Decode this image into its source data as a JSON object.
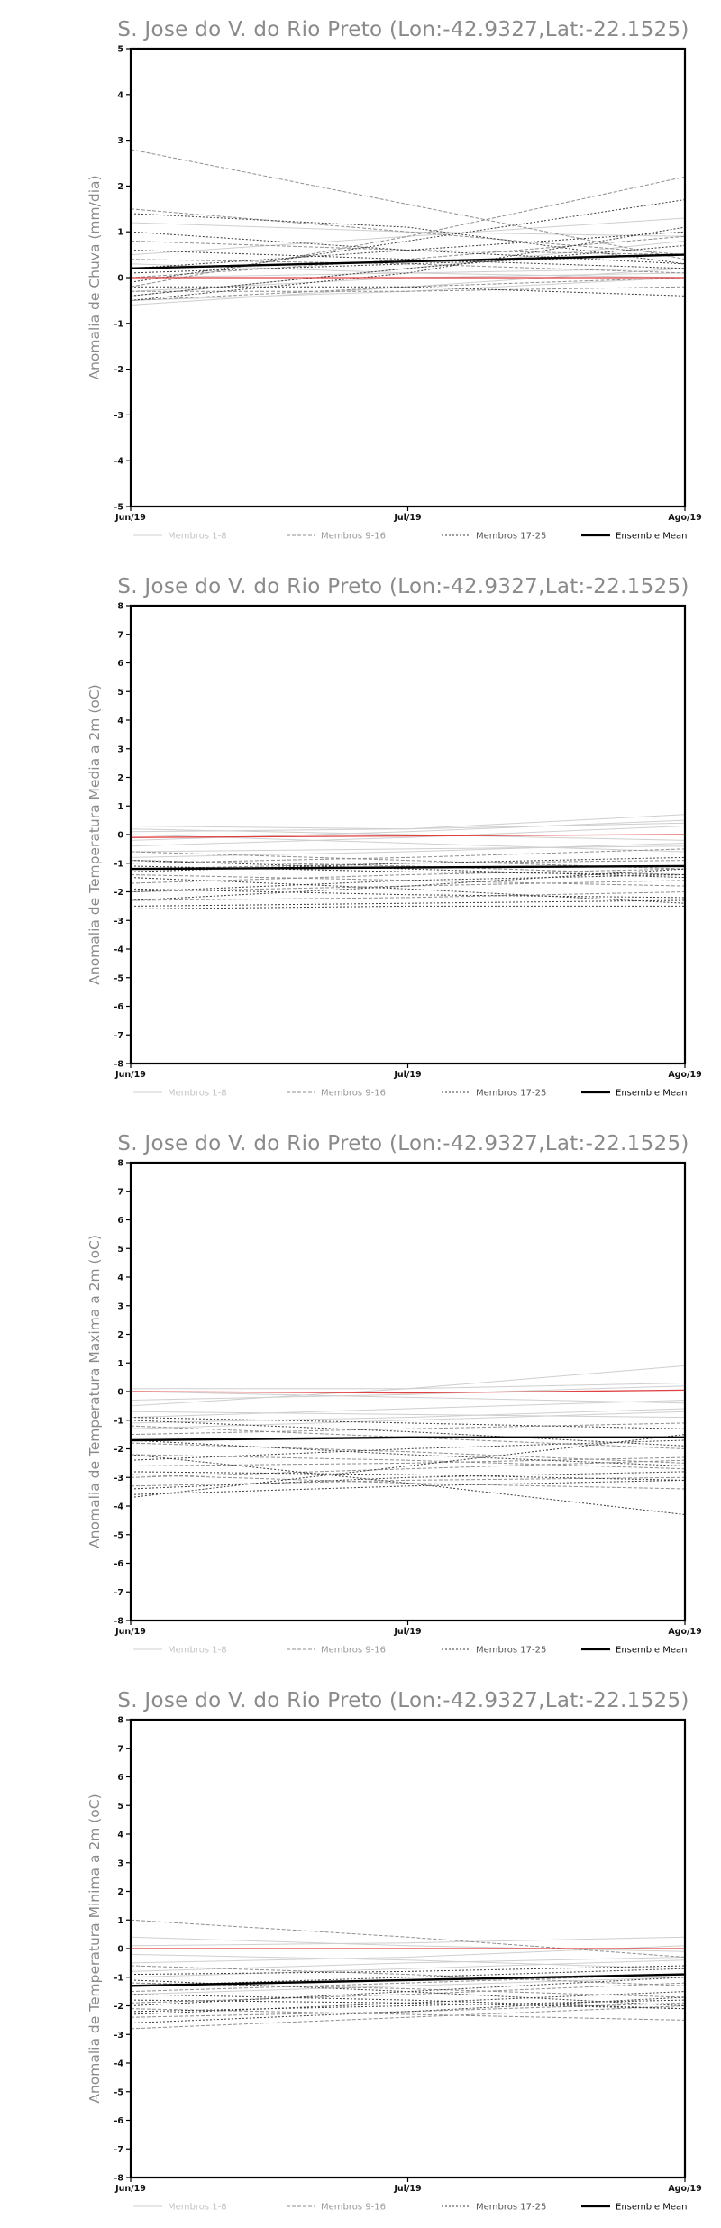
{
  "chart_data": [
    {
      "type": "line",
      "title": "S. Jose do V. do Rio Preto (Lon:-42.9327,Lat:-22.1525)",
      "ylabel": "Anomalia de Chuva (mm/dia)",
      "xlabel": "",
      "categories": [
        "Jun/19",
        "Jul/19",
        "Ago/19"
      ],
      "ylim": [
        -5,
        5
      ],
      "yticks": [
        -5,
        -4,
        -3,
        -2,
        -1,
        0,
        1,
        2,
        3,
        4,
        5
      ],
      "legend": [
        "Membros 1-8",
        "Membros 9-16",
        "Membros 17-25",
        "Ensemble Mean"
      ],
      "legend_position": "bottom",
      "groups": [
        {
          "name": "Membros 1-8",
          "color": "#cfcfcf",
          "dash": "",
          "lines": [
            [
              -0.6,
              -0.2,
              0.2
            ],
            [
              -0.4,
              0.2,
              0.8
            ],
            [
              0.3,
              0.1,
              0.0
            ],
            [
              1.2,
              1.0,
              0.9
            ],
            [
              -0.3,
              0.0,
              0.1
            ],
            [
              0.5,
              0.9,
              1.3
            ],
            [
              -0.5,
              -0.3,
              0.0
            ],
            [
              0.0,
              0.1,
              0.2
            ]
          ]
        },
        {
          "name": "Membros 9-16",
          "color": "#8f8f8f",
          "dash": "4,2",
          "lines": [
            [
              2.8,
              1.6,
              0.4
            ],
            [
              1.5,
              1.0,
              0.5
            ],
            [
              -0.2,
              0.9,
              2.2
            ],
            [
              0.8,
              0.6,
              0.5
            ],
            [
              -0.5,
              -0.2,
              0.0
            ],
            [
              0.4,
              0.3,
              0.1
            ],
            [
              0.0,
              0.4,
              0.9
            ],
            [
              -0.3,
              -0.3,
              -0.2
            ]
          ]
        },
        {
          "name": "Membros 17-25",
          "color": "#3c3c3c",
          "dash": "2,2",
          "lines": [
            [
              1.4,
              1.1,
              0.3
            ],
            [
              -0.1,
              0.8,
              1.7
            ],
            [
              0.2,
              0.6,
              1.0
            ],
            [
              -0.4,
              0.2,
              0.7
            ],
            [
              0.6,
              0.4,
              0.2
            ],
            [
              -0.2,
              -0.2,
              -0.4
            ],
            [
              0.1,
              0.3,
              0.5
            ],
            [
              1.0,
              0.6,
              0.3
            ],
            [
              -0.5,
              0.1,
              1.1
            ]
          ]
        },
        {
          "name": "Ensemble Mean",
          "color": "#000000",
          "dash": "",
          "width": 2.4,
          "lines": [
            [
              0.2,
              0.35,
              0.5
            ]
          ]
        },
        {
          "name": "",
          "color": "#e04040",
          "dash": "",
          "width": 1.3,
          "lines": [
            [
              0.0,
              0.0,
              0.0
            ]
          ]
        }
      ]
    },
    {
      "type": "line",
      "title": "S. Jose do V. do Rio Preto (Lon:-42.9327,Lat:-22.1525)",
      "ylabel": "Anomalia de Temperatura Media a 2m (oC)",
      "xlabel": "",
      "categories": [
        "Jun/19",
        "Jul/19",
        "Ago/19"
      ],
      "ylim": [
        -8,
        8
      ],
      "yticks": [
        -8,
        -7,
        -6,
        -5,
        -4,
        -3,
        -2,
        -1,
        0,
        1,
        2,
        3,
        4,
        5,
        6,
        7,
        8
      ],
      "legend": [
        "Membros 1-8",
        "Membros 9-16",
        "Membros 17-25",
        "Ensemble Mean"
      ],
      "legend_position": "bottom",
      "groups": [
        {
          "name": "Membros 1-8",
          "color": "#cfcfcf",
          "dash": "",
          "lines": [
            [
              0.3,
              0.2,
              0.7
            ],
            [
              -0.4,
              -0.1,
              0.3
            ],
            [
              0.0,
              -0.3,
              -0.6
            ],
            [
              -0.2,
              0.1,
              0.5
            ],
            [
              -0.8,
              -0.6,
              -0.3
            ],
            [
              0.2,
              0.0,
              -0.2
            ],
            [
              -0.6,
              -0.5,
              -0.4
            ],
            [
              0.1,
              0.2,
              0.4
            ]
          ]
        },
        {
          "name": "Membros 9-16",
          "color": "#8f8f8f",
          "dash": "4,2",
          "lines": [
            [
              -1.0,
              -0.8,
              -0.5
            ],
            [
              -1.4,
              -1.6,
              -1.8
            ],
            [
              -2.0,
              -1.8,
              -1.6
            ],
            [
              -0.6,
              -0.9,
              -1.2
            ],
            [
              -1.7,
              -1.4,
              -1.2
            ],
            [
              -0.9,
              -1.1,
              -1.4
            ],
            [
              -2.3,
              -2.2,
              -2.0
            ],
            [
              -1.2,
              -1.0,
              -0.9
            ]
          ]
        },
        {
          "name": "Membros 17-25",
          "color": "#3c3c3c",
          "dash": "2,2",
          "lines": [
            [
              -2.0,
              -1.6,
              -1.4
            ],
            [
              -1.5,
              -1.9,
              -2.4
            ],
            [
              -2.5,
              -2.4,
              -2.3
            ],
            [
              -1.9,
              -2.1,
              -2.2
            ],
            [
              -1.1,
              -1.3,
              -1.4
            ],
            [
              -2.3,
              -1.8,
              -1.2
            ],
            [
              -1.3,
              -1.0,
              -0.8
            ],
            [
              -2.6,
              -2.5,
              -2.5
            ],
            [
              -0.9,
              -1.2,
              -1.5
            ]
          ]
        },
        {
          "name": "Ensemble Mean",
          "color": "#000000",
          "dash": "",
          "width": 2.4,
          "lines": [
            [
              -1.2,
              -1.15,
              -1.1
            ]
          ]
        },
        {
          "name": "",
          "color": "#e04040",
          "dash": "",
          "width": 1.3,
          "lines": [
            [
              -0.1,
              -0.05,
              0.0
            ]
          ]
        }
      ]
    },
    {
      "type": "line",
      "title": "S. Jose do V. do Rio Preto (Lon:-42.9327,Lat:-22.1525)",
      "ylabel": "Anomalia de Temperatura Maxima a 2m (oC)",
      "xlabel": "",
      "categories": [
        "Jun/19",
        "Jul/19",
        "Ago/19"
      ],
      "ylim": [
        -8,
        8
      ],
      "yticks": [
        -8,
        -7,
        -6,
        -5,
        -4,
        -3,
        -2,
        -1,
        0,
        1,
        2,
        3,
        4,
        5,
        6,
        7,
        8
      ],
      "legend": [
        "Membros 1-8",
        "Membros 9-16",
        "Membros 17-25",
        "Ensemble Mean"
      ],
      "legend_position": "bottom",
      "groups": [
        {
          "name": "Membros 1-8",
          "color": "#cfcfcf",
          "dash": "",
          "lines": [
            [
              -0.5,
              0.1,
              0.9
            ],
            [
              0.0,
              -0.2,
              -0.4
            ],
            [
              -0.9,
              -0.6,
              -0.3
            ],
            [
              -0.3,
              -0.1,
              0.2
            ],
            [
              -1.3,
              -1.0,
              -0.7
            ],
            [
              0.1,
              0.1,
              0.3
            ],
            [
              -0.7,
              -0.8,
              -0.9
            ],
            [
              -1.1,
              -0.9,
              -0.6
            ]
          ]
        },
        {
          "name": "Membros 9-16",
          "color": "#8f8f8f",
          "dash": "4,2",
          "lines": [
            [
              -1.8,
              -2.1,
              -2.5
            ],
            [
              -2.6,
              -2.5,
              -2.3
            ],
            [
              -1.2,
              -1.6,
              -2.0
            ],
            [
              -3.0,
              -2.7,
              -2.4
            ],
            [
              -2.2,
              -2.4,
              -2.7
            ],
            [
              -3.3,
              -3.1,
              -3.0
            ],
            [
              -1.5,
              -1.3,
              -1.1
            ],
            [
              -2.9,
              -3.2,
              -3.4
            ]
          ]
        },
        {
          "name": "Membros 17-25",
          "color": "#3c3c3c",
          "dash": "2,2",
          "lines": [
            [
              -3.7,
              -2.6,
              -1.5
            ],
            [
              -2.2,
              -3.2,
              -4.3
            ],
            [
              -1.0,
              -1.4,
              -1.9
            ],
            [
              -2.8,
              -2.9,
              -3.1
            ],
            [
              -1.7,
              -2.2,
              -2.6
            ],
            [
              -3.6,
              -3.3,
              -3.1
            ],
            [
              -0.9,
              -1.1,
              -1.3
            ],
            [
              -2.4,
              -2.0,
              -1.7
            ],
            [
              -3.4,
              -3.0,
              -2.8
            ]
          ]
        },
        {
          "name": "Ensemble Mean",
          "color": "#000000",
          "dash": "",
          "width": 2.4,
          "lines": [
            [
              -1.7,
              -1.6,
              -1.6
            ]
          ]
        },
        {
          "name": "",
          "color": "#e04040",
          "dash": "",
          "width": 1.3,
          "lines": [
            [
              0.0,
              -0.05,
              0.05
            ]
          ]
        }
      ]
    },
    {
      "type": "line",
      "title": "S. Jose do V. do Rio Preto (Lon:-42.9327,Lat:-22.1525)",
      "ylabel": "Anomalia de Temperatura Minima a 2m (oC)",
      "xlabel": "",
      "categories": [
        "Jun/19",
        "Jul/19",
        "Ago/19"
      ],
      "ylim": [
        -8,
        8
      ],
      "yticks": [
        -8,
        -7,
        -6,
        -5,
        -4,
        -3,
        -2,
        -1,
        0,
        1,
        2,
        3,
        4,
        5,
        6,
        7,
        8
      ],
      "legend": [
        "Membros 1-8",
        "Membros 9-16",
        "Membros 17-25",
        "Ensemble Mean"
      ],
      "legend_position": "bottom",
      "groups": [
        {
          "name": "Membros 1-8",
          "color": "#cfcfcf",
          "dash": "",
          "lines": [
            [
              0.4,
              0.1,
              -0.1
            ],
            [
              -0.5,
              -0.3,
              0.1
            ],
            [
              -1.0,
              -0.7,
              -0.4
            ],
            [
              0.1,
              0.2,
              0.4
            ],
            [
              -1.6,
              -1.3,
              -1.0
            ],
            [
              -0.2,
              -0.4,
              -0.7
            ],
            [
              -1.3,
              -1.1,
              -0.9
            ],
            [
              -0.8,
              -0.5,
              -0.3
            ]
          ]
        },
        {
          "name": "Membros 9-16",
          "color": "#8f8f8f",
          "dash": "4,2",
          "lines": [
            [
              1.0,
              0.4,
              -0.3
            ],
            [
              -1.9,
              -1.6,
              -1.2
            ],
            [
              -2.4,
              -2.2,
              -1.9
            ],
            [
              -1.2,
              -1.4,
              -1.7
            ],
            [
              -2.8,
              -2.4,
              -2.0
            ],
            [
              -0.6,
              -0.9,
              -1.3
            ],
            [
              -2.1,
              -2.3,
              -2.5
            ],
            [
              -1.5,
              -1.2,
              -0.9
            ]
          ]
        },
        {
          "name": "Membros 17-25",
          "color": "#3c3c3c",
          "dash": "2,2",
          "lines": [
            [
              -2.0,
              -1.5,
              -1.0
            ],
            [
              -1.1,
              -1.5,
              -2.0
            ],
            [
              -2.3,
              -1.9,
              -1.5
            ],
            [
              -1.6,
              -1.8,
              -2.1
            ],
            [
              -0.9,
              -0.8,
              -0.6
            ],
            [
              -2.6,
              -2.2,
              -1.7
            ],
            [
              -1.8,
              -1.9,
              -2.1
            ],
            [
              -1.3,
              -1.0,
              -0.7
            ],
            [
              -2.2,
              -2.0,
              -1.8
            ]
          ]
        },
        {
          "name": "Ensemble Mean",
          "color": "#000000",
          "dash": "",
          "width": 2.4,
          "lines": [
            [
              -1.3,
              -1.1,
              -0.9
            ]
          ]
        },
        {
          "name": "",
          "color": "#e04040",
          "dash": "",
          "width": 1.3,
          "lines": [
            [
              0.0,
              0.0,
              0.0
            ]
          ]
        }
      ]
    }
  ]
}
